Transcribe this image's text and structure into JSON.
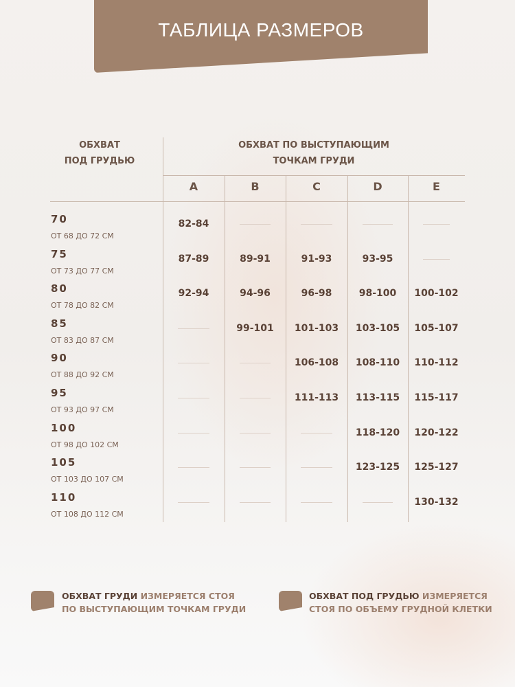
{
  "title": "ТАБЛИЦА РАЗМЕРОВ",
  "header": {
    "underbust_line1": "ОБХВАТ",
    "underbust_line2": "ПОД ГРУДЬЮ",
    "bust_line1": "ОБХВАТ ПО ВЫСТУПАЮЩИМ",
    "bust_line2": "ТОЧКАМ ГРУДИ"
  },
  "cups": [
    "A",
    "B",
    "C",
    "D",
    "E"
  ],
  "rows": [
    {
      "size": "70",
      "range": "ОТ 68 ДО 72 СМ",
      "values": [
        "82-84",
        null,
        null,
        null,
        null
      ]
    },
    {
      "size": "75",
      "range": "ОТ 73 ДО 77 СМ",
      "values": [
        "87-89",
        "89-91",
        "91-93",
        "93-95",
        null
      ]
    },
    {
      "size": "80",
      "range": "ОТ 78 ДО 82 СМ",
      "values": [
        "92-94",
        "94-96",
        "96-98",
        "98-100",
        "100-102"
      ]
    },
    {
      "size": "85",
      "range": "ОТ 83 ДО 87 СМ",
      "values": [
        null,
        "99-101",
        "101-103",
        "103-105",
        "105-107"
      ]
    },
    {
      "size": "90",
      "range": "ОТ 88 ДО 92 СМ",
      "values": [
        null,
        null,
        "106-108",
        "108-110",
        "110-112"
      ]
    },
    {
      "size": "95",
      "range": "ОТ 93 ДО 97 СМ",
      "values": [
        null,
        null,
        "111-113",
        "113-115",
        "115-117"
      ]
    },
    {
      "size": "100",
      "range": "ОТ 98 ДО 102 СМ",
      "values": [
        null,
        null,
        null,
        "118-120",
        "120-122"
      ]
    },
    {
      "size": "105",
      "range": "ОТ 103 ДО 107 СМ",
      "values": [
        null,
        null,
        null,
        "123-125",
        "125-127"
      ]
    },
    {
      "size": "110",
      "range": "ОТ 108 ДО 112 СМ",
      "values": [
        null,
        null,
        null,
        null,
        "130-132"
      ]
    }
  ],
  "notes": [
    {
      "bold": "ОБХВАТ ГРУДИ",
      "rest1": " ИЗМЕРЯЕТСЯ СТОЯ",
      "line2": "ПО ВЫСТУПАЮЩИМ ТОЧКАМ ГРУДИ"
    },
    {
      "bold": "ОБХВАТ ПОД ГРУДЬЮ",
      "rest1": " ИЗМЕРЯЕТСЯ",
      "line2": "СТОЯ ПО ОБЪЕМУ ГРУДНОЙ КЛЕТКИ"
    }
  ],
  "colors": {
    "accent": "#a0826c",
    "text": "#5a4236"
  }
}
